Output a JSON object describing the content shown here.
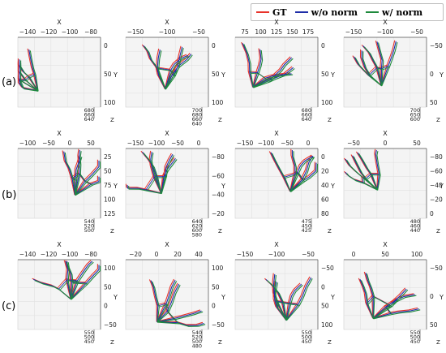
{
  "legend": [
    {
      "label": "GT",
      "color": "#e8332a"
    },
    {
      "label": "w/o norm",
      "color": "#1f2ea8"
    },
    {
      "label": "w/ norm",
      "color": "#1e8a3c"
    }
  ],
  "rows": [
    {
      "label": "(a)"
    },
    {
      "label": "(b)"
    },
    {
      "label": "(c)"
    }
  ],
  "chart_data": [
    {
      "type": "line",
      "row": "(a)",
      "xlabel": "X",
      "ylabel": "Y",
      "zlabel": "Z",
      "x_ticks": [
        "−140",
        "−120",
        "−100",
        "−80"
      ],
      "y_ticks": [
        "0",
        "50",
        "100"
      ],
      "z_ticks": [
        "680",
        "660",
        "640"
      ]
    },
    {
      "type": "line",
      "row": "(a)",
      "xlabel": "X",
      "ylabel": "Y",
      "zlabel": "Z",
      "x_ticks": [
        "−150",
        "−100",
        "−50"
      ],
      "y_ticks": [
        "0",
        "50",
        "100"
      ],
      "z_ticks": [
        "700",
        "680",
        "660",
        "640"
      ]
    },
    {
      "type": "line",
      "row": "(a)",
      "xlabel": "X",
      "ylabel": "Y",
      "zlabel": "Z",
      "x_ticks": [
        "75",
        "100",
        "125",
        "150",
        "175"
      ],
      "y_ticks": [
        "0",
        "50",
        "100"
      ],
      "z_ticks": [
        "680",
        "660",
        "640"
      ]
    },
    {
      "type": "line",
      "row": "(a)",
      "xlabel": "X",
      "ylabel": "Y",
      "zlabel": "Z",
      "x_ticks": [
        "−150",
        "−100",
        "−50"
      ],
      "y_ticks": [
        "−50",
        "0",
        "50"
      ],
      "z_ticks": [
        "700",
        "650",
        "600"
      ]
    },
    {
      "type": "line",
      "row": "(b)",
      "xlabel": "X",
      "ylabel": "Y",
      "zlabel": "Z",
      "x_ticks": [
        "−100",
        "−50",
        "0",
        "50"
      ],
      "y_ticks": [
        "25",
        "50",
        "75",
        "100",
        "125"
      ],
      "z_ticks": [
        "540",
        "520",
        "500"
      ]
    },
    {
      "type": "line",
      "row": "(b)",
      "xlabel": "X",
      "ylabel": "Y",
      "zlabel": "Z",
      "x_ticks": [
        "−150",
        "−100",
        "−50",
        "0"
      ],
      "y_ticks": [
        "−80",
        "−60",
        "−40",
        "−20"
      ],
      "z_ticks": [
        "640",
        "620",
        "600",
        "580"
      ]
    },
    {
      "type": "line",
      "row": "(b)",
      "xlabel": "X",
      "ylabel": "Y",
      "zlabel": "Z",
      "x_ticks": [
        "−150",
        "−100",
        "−50",
        "0"
      ],
      "y_ticks": [
        "0",
        "20",
        "40",
        "60",
        "80"
      ],
      "z_ticks": [
        "475",
        "450",
        "425"
      ]
    },
    {
      "type": "line",
      "row": "(b)",
      "xlabel": "X",
      "ylabel": "Y",
      "zlabel": "Z",
      "x_ticks": [
        "−50",
        "0",
        "50"
      ],
      "y_ticks": [
        "−80",
        "−60",
        "−40",
        "−20",
        "0"
      ],
      "z_ticks": [
        "480",
        "460",
        "440"
      ]
    },
    {
      "type": "line",
      "row": "(c)",
      "xlabel": "X",
      "ylabel": "Y",
      "zlabel": "Z",
      "x_ticks": [
        "−140",
        "−120",
        "−100",
        "−80"
      ],
      "y_ticks": [
        "100",
        "50",
        "0",
        "−50"
      ],
      "z_ticks": [
        "550",
        "500",
        "450"
      ]
    },
    {
      "type": "line",
      "row": "(c)",
      "xlabel": "X",
      "ylabel": "Y",
      "zlabel": "Z",
      "x_ticks": [
        "−20",
        "0",
        "20",
        "40"
      ],
      "y_ticks": [
        "100",
        "50",
        "0",
        "−50"
      ],
      "z_ticks": [
        "540",
        "520",
        "500",
        "480"
      ]
    },
    {
      "type": "line",
      "row": "(c)",
      "xlabel": "X",
      "ylabel": "Y",
      "zlabel": "Z",
      "x_ticks": [
        "−150",
        "−100",
        "−50"
      ],
      "y_ticks": [
        "−50",
        "0",
        "50",
        "100"
      ],
      "z_ticks": [
        "550",
        "500",
        "450"
      ]
    },
    {
      "type": "line",
      "row": "(c)",
      "xlabel": "X",
      "ylabel": "Y",
      "zlabel": "Z",
      "x_ticks": [
        "0",
        "50",
        "100"
      ],
      "y_ticks": [
        "−50",
        "0",
        "50"
      ],
      "z_ticks": [
        "550",
        "500",
        "450"
      ]
    }
  ]
}
